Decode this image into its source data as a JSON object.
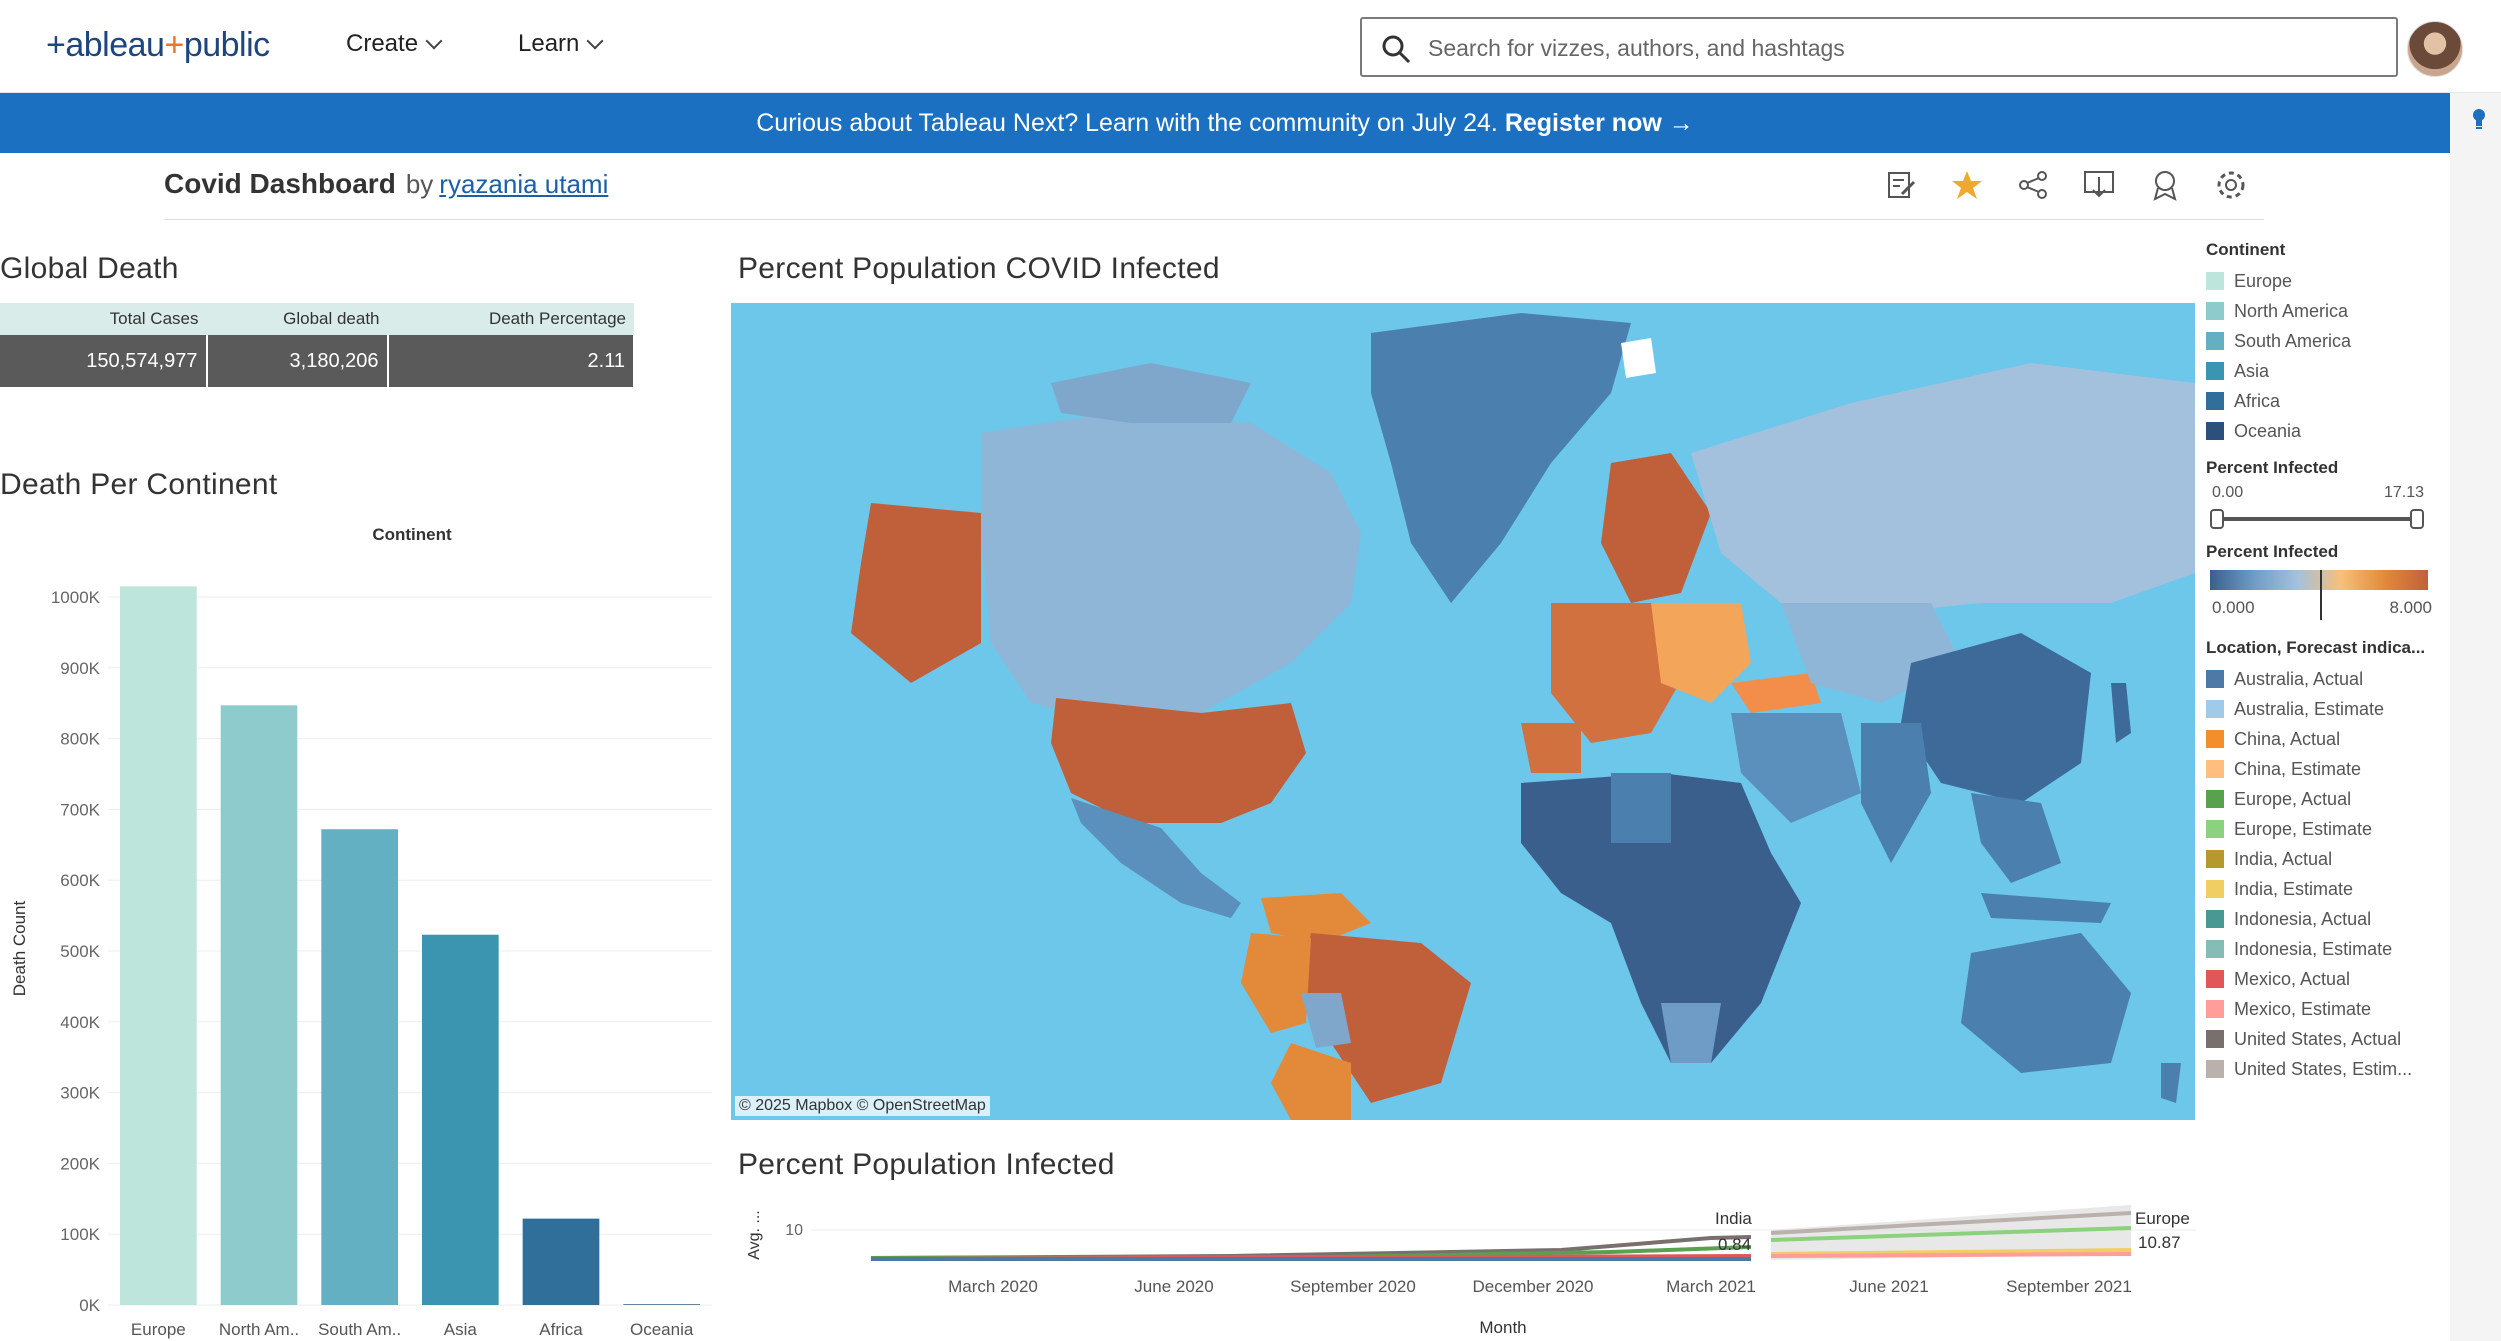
{
  "nav": {
    "logo_text": "+ableau",
    "logo_plus": "+",
    "logo_public": "public",
    "create": "Create",
    "learn": "Learn",
    "search_placeholder": "Search for vizzes, authors, and hashtags"
  },
  "banner": {
    "text": "Curious about Tableau Next? Learn with the community on July 24.",
    "cta": "Register now →"
  },
  "viz": {
    "title": "Covid Dashboard",
    "by": "by",
    "author": "ryazania utami"
  },
  "global_death": {
    "title": "Global Death",
    "headers": [
      "Total Cases",
      "Global death",
      "Death Percentage"
    ],
    "values": [
      "150,574,977",
      "3,180,206",
      "2.11"
    ]
  },
  "death_per_continent": {
    "title": "Death Per Continent",
    "header": "Continent"
  },
  "map": {
    "title": "Percent Population COVID Infected",
    "attribution": "© 2025 Mapbox  © OpenStreetMap"
  },
  "line_panel": {
    "title": "Percent Population Infected"
  },
  "legend": {
    "continent_title": "Continent",
    "continents": [
      {
        "label": "Europe",
        "color": "#bde5dc"
      },
      {
        "label": "North America",
        "color": "#8ecbcc"
      },
      {
        "label": "South America",
        "color": "#62b0c1"
      },
      {
        "label": "Asia",
        "color": "#3c95b0"
      },
      {
        "label": "Africa",
        "color": "#2f6f99"
      },
      {
        "label": "Oceania",
        "color": "#2c4f7c"
      }
    ],
    "range_title": "Percent Infected",
    "range_min": "0.00",
    "range_max": "17.13",
    "color_title": "Percent Infected",
    "color_min": "0.000",
    "color_max": "8.000",
    "forecast_title": "Location, Forecast indica...",
    "forecast": [
      {
        "label": "Australia, Actual",
        "color": "#4e79a7"
      },
      {
        "label": "Australia, Estimate",
        "color": "#a0cbe8"
      },
      {
        "label": "China, Actual",
        "color": "#f28e2b"
      },
      {
        "label": "China, Estimate",
        "color": "#ffbe7d"
      },
      {
        "label": "Europe, Actual",
        "color": "#59a14f"
      },
      {
        "label": "Europe, Estimate",
        "color": "#8cd17d"
      },
      {
        "label": "India, Actual",
        "color": "#b6992d"
      },
      {
        "label": "India, Estimate",
        "color": "#f1ce63"
      },
      {
        "label": "Indonesia, Actual",
        "color": "#499894"
      },
      {
        "label": "Indonesia, Estimate",
        "color": "#86bcb6"
      },
      {
        "label": "Mexico, Actual",
        "color": "#e15759"
      },
      {
        "label": "Mexico, Estimate",
        "color": "#ff9d9a"
      },
      {
        "label": "United States, Actual",
        "color": "#79706e"
      },
      {
        "label": "United States, Estim...",
        "color": "#bab0ac"
      }
    ]
  },
  "chart_data": [
    {
      "type": "bar",
      "title": "Death Per Continent",
      "xlabel": "Continent",
      "ylabel": "Death Count",
      "categories": [
        "Europe",
        "North Am..",
        "South Am..",
        "Asia",
        "Africa",
        "Oceania"
      ],
      "values": [
        1015000,
        847000,
        672000,
        523000,
        122000,
        1000
      ],
      "colors": [
        "#bde5dc",
        "#8ecbcc",
        "#62b0c1",
        "#3c95b0",
        "#2f6f99",
        "#2c4f7c"
      ],
      "ylim": [
        0,
        1000000
      ],
      "yticks": [
        "0K",
        "100K",
        "200K",
        "300K",
        "400K",
        "500K",
        "600K",
        "700K",
        "800K",
        "900K",
        "1000K"
      ]
    },
    {
      "type": "line",
      "title": "Percent Population Infected",
      "xlabel": "Month",
      "ylabel": "Avg. ...",
      "xticks": [
        "March 2020",
        "June 2020",
        "September 2020",
        "December 2020",
        "March 2021",
        "June 2021",
        "September 2021"
      ],
      "ytick": "10",
      "annotations": [
        {
          "label": "India",
          "value": "0.84"
        },
        {
          "label": "Europe",
          "value": "10.87"
        }
      ]
    }
  ]
}
